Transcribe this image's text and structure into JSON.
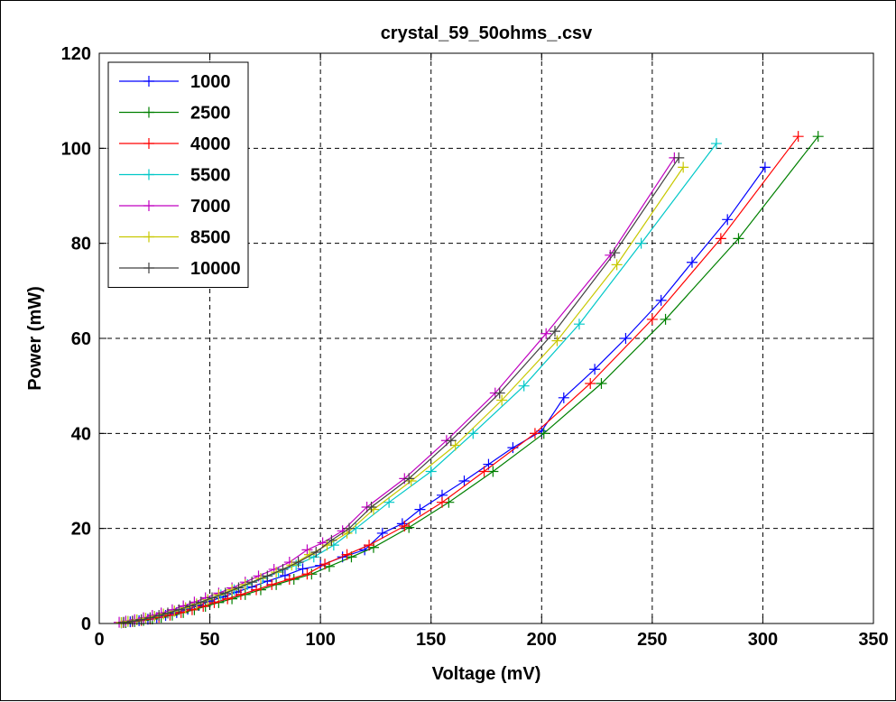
{
  "chart_data": {
    "type": "line",
    "title": "crystal_59_50ohms_.csv",
    "xlabel": "Voltage (mV)",
    "ylabel": "Power (mW)",
    "xlim": [
      0,
      350
    ],
    "ylim": [
      0,
      120
    ],
    "xticks": [
      0,
      50,
      100,
      150,
      200,
      250,
      300,
      350
    ],
    "yticks": [
      0,
      20,
      40,
      60,
      80,
      100,
      120
    ],
    "grid": true,
    "legend_position": "top-left",
    "series": [
      {
        "name": "1000",
        "color": "#0000ff",
        "x": [
          10,
          14,
          18,
          22,
          26,
          30,
          35,
          40,
          45,
          50,
          56,
          62,
          69,
          76,
          84,
          92,
          100,
          110,
          120,
          128,
          137,
          145,
          155,
          165,
          176,
          187,
          200,
          210,
          224,
          238,
          254,
          268,
          284,
          301
        ],
        "y": [
          0.15,
          0.35,
          0.6,
          0.9,
          1.25,
          1.7,
          2.3,
          3.0,
          3.8,
          4.7,
          5.6,
          6.6,
          7.7,
          8.9,
          10.1,
          11.5,
          12.2,
          14.0,
          15.5,
          19.0,
          21.0,
          24.0,
          27.0,
          30.0,
          33.5,
          37.0,
          40.5,
          47.5,
          53.5,
          60.0,
          68.0,
          76.0,
          85.0,
          96.0
        ]
      },
      {
        "name": "2500",
        "color": "#008000",
        "x": [
          12,
          16,
          20,
          24,
          28,
          33,
          38,
          43,
          48,
          54,
          60,
          66,
          73,
          80,
          88,
          96,
          104,
          114,
          124,
          140,
          158,
          178,
          201,
          227,
          256,
          289,
          325
        ],
        "y": [
          0.2,
          0.4,
          0.65,
          0.95,
          1.3,
          1.75,
          2.3,
          2.9,
          3.6,
          4.4,
          5.2,
          6.1,
          7.1,
          8.2,
          9.3,
          10.4,
          12.0,
          14.0,
          16.0,
          20.2,
          25.5,
          32.0,
          40.0,
          50.5,
          64.0,
          81.0,
          102.5
        ]
      },
      {
        "name": "4000",
        "color": "#ff0000",
        "x": [
          11,
          15,
          19,
          23,
          27,
          32,
          37,
          42,
          47,
          52,
          58,
          64,
          71,
          78,
          86,
          94,
          102,
          112,
          122,
          138,
          155,
          174,
          197,
          222,
          250,
          281,
          316
        ],
        "y": [
          0.2,
          0.4,
          0.65,
          0.95,
          1.3,
          1.75,
          2.3,
          2.9,
          3.6,
          4.4,
          5.2,
          6.1,
          7.1,
          8.2,
          9.3,
          10.4,
          12.5,
          14.5,
          16.5,
          20.5,
          25.5,
          32.0,
          40.0,
          50.5,
          64.0,
          81.0,
          102.5
        ]
      },
      {
        "name": "5500",
        "color": "#00c8c8",
        "x": [
          10,
          13,
          17,
          21,
          25,
          29,
          34,
          39,
          44,
          49,
          55,
          61,
          67,
          74,
          81,
          89,
          97,
          106,
          116,
          131,
          150,
          169,
          192,
          217,
          245,
          279
        ],
        "y": [
          0.2,
          0.45,
          0.75,
          1.1,
          1.5,
          2.0,
          2.6,
          3.3,
          4.1,
          5.0,
          6.0,
          7.1,
          8.2,
          9.5,
          10.8,
          12.3,
          14.0,
          16.5,
          20.0,
          25.5,
          32.0,
          40.0,
          50.0,
          63.0,
          80.0,
          101.0
        ]
      },
      {
        "name": "7000",
        "color": "#c000c0",
        "x": [
          9,
          12,
          16,
          20,
          24,
          28,
          33,
          38,
          43,
          48,
          54,
          60,
          66,
          72,
          79,
          86,
          94,
          101,
          110,
          121,
          138,
          157,
          179,
          202,
          231,
          260
        ],
        "y": [
          0.25,
          0.5,
          0.8,
          1.2,
          1.7,
          2.2,
          2.9,
          3.7,
          4.5,
          5.4,
          6.4,
          7.5,
          8.7,
          10.0,
          11.4,
          12.9,
          15.5,
          17.0,
          19.5,
          24.5,
          30.5,
          38.5,
          48.5,
          61.0,
          77.5,
          98.0
        ]
      },
      {
        "name": "8500",
        "color": "#c8c800",
        "x": [
          10,
          13,
          17,
          21,
          25,
          29,
          34,
          39,
          44,
          49,
          54,
          60,
          66,
          73,
          80,
          87,
          95,
          103,
          112,
          124,
          141,
          161,
          182,
          207,
          234,
          264
        ],
        "y": [
          0.2,
          0.45,
          0.75,
          1.1,
          1.5,
          2.0,
          2.6,
          3.3,
          4.1,
          5.0,
          6.0,
          7.1,
          8.2,
          9.5,
          10.8,
          12.3,
          14.5,
          16.5,
          19.0,
          24.0,
          30.0,
          37.5,
          47.0,
          59.5,
          75.5,
          96.0
        ]
      },
      {
        "name": "10000",
        "color": "#404040",
        "x": [
          11,
          15,
          19,
          23,
          27,
          31,
          36,
          41,
          46,
          51,
          57,
          63,
          69,
          76,
          83,
          90,
          98,
          105,
          113,
          123,
          140,
          159,
          181,
          206,
          233,
          262
        ],
        "y": [
          0.25,
          0.5,
          0.8,
          1.2,
          1.7,
          2.2,
          2.9,
          3.7,
          4.5,
          5.4,
          6.4,
          7.5,
          8.7,
          10.0,
          11.4,
          12.9,
          15.0,
          17.5,
          20.0,
          24.5,
          30.5,
          38.5,
          48.5,
          61.5,
          78.0,
          98.0
        ]
      }
    ]
  }
}
